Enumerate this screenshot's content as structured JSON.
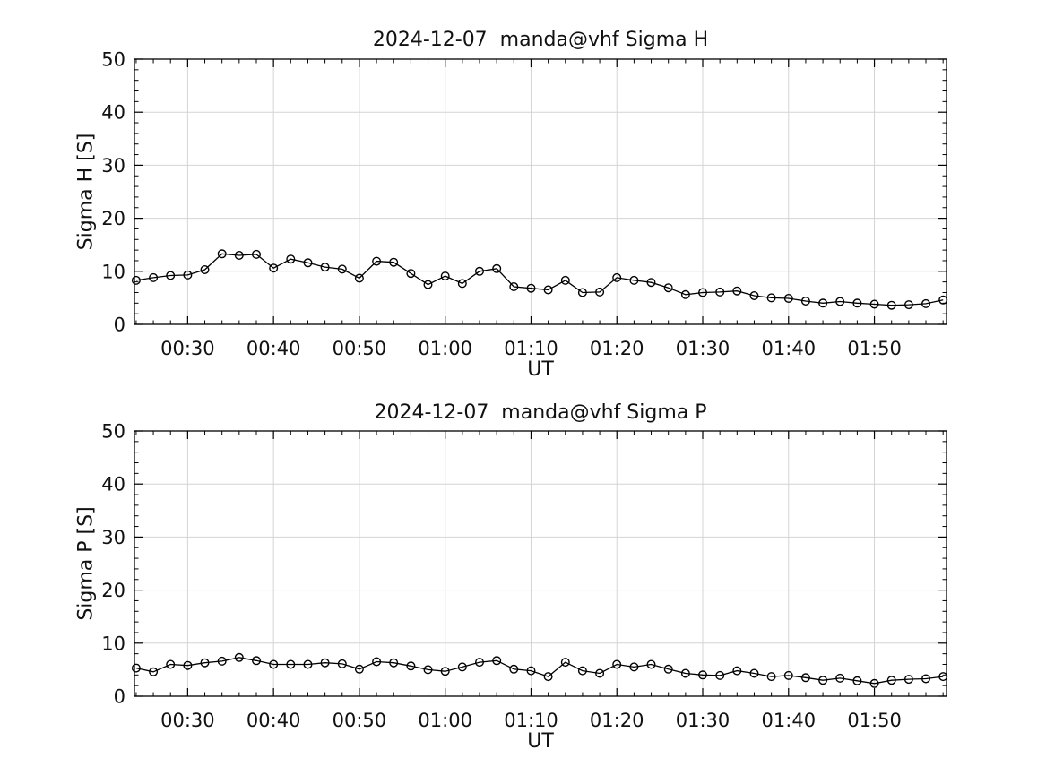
{
  "figure": {
    "background": "#ffffff",
    "text_color": "#111111",
    "axis_color": "#000000",
    "grid_color": "#d4d4d4",
    "line_color": "#000000"
  },
  "chart_data": [
    {
      "type": "line",
      "title": "2024-12-07  manda@vhf Sigma H",
      "xlabel": "UT",
      "ylabel": "Sigma H [S]",
      "marker": "open-circle",
      "grid": true,
      "legend": "none",
      "ylim": [
        0,
        50
      ],
      "yticks": [
        0,
        10,
        20,
        30,
        40,
        50
      ],
      "y_minor_step": 2,
      "x_range_times": [
        "00:24",
        "01:58"
      ],
      "xlim_minutes": [
        23.8,
        118.4
      ],
      "xticks": {
        "minutes": [
          30,
          40,
          50,
          60,
          70,
          80,
          90,
          100,
          110
        ],
        "labels": [
          "00:30",
          "00:40",
          "00:50",
          "01:00",
          "01:10",
          "01:20",
          "01:30",
          "01:40",
          "01:50"
        ]
      },
      "x_minor_step_minutes": 2,
      "x_times": [
        "00:24",
        "00:26",
        "00:28",
        "00:30",
        "00:32",
        "00:34",
        "00:36",
        "00:38",
        "00:40",
        "00:42",
        "00:44",
        "00:46",
        "00:48",
        "00:50",
        "00:52",
        "00:54",
        "00:56",
        "00:58",
        "01:00",
        "01:02",
        "01:04",
        "01:06",
        "01:08",
        "01:10",
        "01:12",
        "01:14",
        "01:16",
        "01:18",
        "01:20",
        "01:22",
        "01:24",
        "01:26",
        "01:28",
        "01:30",
        "01:32",
        "01:34",
        "01:36",
        "01:38",
        "01:40",
        "01:42",
        "01:44",
        "01:46",
        "01:48",
        "01:50",
        "01:52",
        "01:54",
        "01:56",
        "01:58"
      ],
      "values": [
        8.3,
        8.8,
        9.2,
        9.3,
        10.3,
        13.3,
        13.0,
        13.2,
        10.6,
        12.3,
        11.6,
        10.8,
        10.4,
        8.7,
        11.9,
        11.7,
        9.6,
        7.5,
        9.1,
        7.7,
        10.0,
        10.5,
        7.1,
        6.8,
        6.5,
        8.3,
        6.0,
        6.1,
        8.8,
        8.3,
        7.9,
        6.9,
        5.6,
        6.0,
        6.1,
        6.3,
        5.4,
        5.0,
        4.9,
        4.4,
        4.0,
        4.3,
        4.0,
        3.8,
        3.6,
        3.7,
        3.9,
        4.6
      ]
    },
    {
      "type": "line",
      "title": "2024-12-07  manda@vhf Sigma P",
      "xlabel": "UT",
      "ylabel": "Sigma P [S]",
      "marker": "open-circle",
      "grid": true,
      "legend": "none",
      "ylim": [
        0,
        50
      ],
      "yticks": [
        0,
        10,
        20,
        30,
        40,
        50
      ],
      "y_minor_step": 2,
      "x_range_times": [
        "00:24",
        "01:58"
      ],
      "xlim_minutes": [
        23.8,
        118.4
      ],
      "xticks": {
        "minutes": [
          30,
          40,
          50,
          60,
          70,
          80,
          90,
          100,
          110
        ],
        "labels": [
          "00:30",
          "00:40",
          "00:50",
          "01:00",
          "01:10",
          "01:20",
          "01:30",
          "01:40",
          "01:50"
        ]
      },
      "x_minor_step_minutes": 2,
      "x_times": [
        "00:24",
        "00:26",
        "00:28",
        "00:30",
        "00:32",
        "00:34",
        "00:36",
        "00:38",
        "00:40",
        "00:42",
        "00:44",
        "00:46",
        "00:48",
        "00:50",
        "00:52",
        "00:54",
        "00:56",
        "00:58",
        "01:00",
        "01:02",
        "01:04",
        "01:06",
        "01:08",
        "01:10",
        "01:12",
        "01:14",
        "01:16",
        "01:18",
        "01:20",
        "01:22",
        "01:24",
        "01:26",
        "01:28",
        "01:30",
        "01:32",
        "01:34",
        "01:36",
        "01:38",
        "01:40",
        "01:42",
        "01:44",
        "01:46",
        "01:48",
        "01:50",
        "01:52",
        "01:54",
        "01:56",
        "01:58"
      ],
      "values": [
        5.3,
        4.6,
        6.0,
        5.8,
        6.3,
        6.6,
        7.3,
        6.7,
        6.0,
        6.0,
        6.0,
        6.3,
        6.1,
        5.1,
        6.5,
        6.3,
        5.7,
        5.0,
        4.7,
        5.5,
        6.4,
        6.7,
        5.1,
        4.8,
        3.7,
        6.4,
        4.8,
        4.3,
        6.0,
        5.5,
        6.0,
        5.1,
        4.3,
        4.0,
        3.9,
        4.8,
        4.3,
        3.7,
        3.9,
        3.5,
        3.0,
        3.4,
        2.9,
        2.4,
        3.0,
        3.2,
        3.3,
        3.7
      ]
    }
  ]
}
